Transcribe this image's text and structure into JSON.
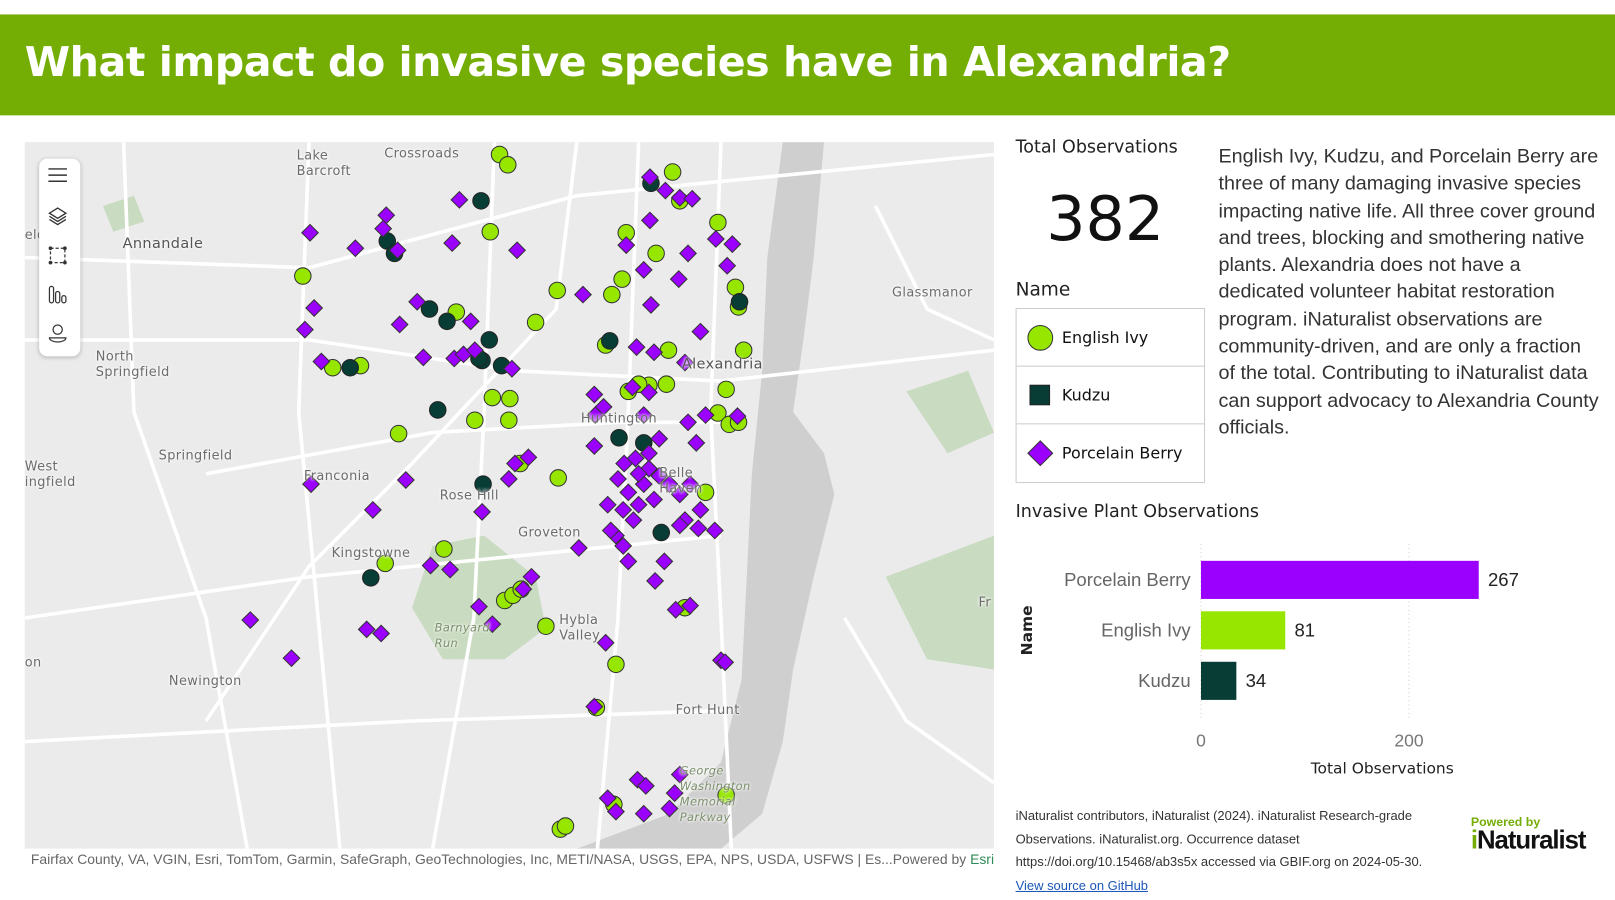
{
  "header": {
    "title": "What impact do invasive species have in Alexandria?",
    "color": "#74ad04"
  },
  "map": {
    "labels": [
      "Lake\nBarcroft",
      "Crossroads",
      "Annandale",
      "North\nSpringfield",
      "Glassmanor",
      "Alexandria",
      "Huntington",
      "Springfield",
      "Franconia",
      "Rose Hill",
      "West\ningfield",
      "Belle\nHaven",
      "Kingstowne",
      "Groveton",
      "Hybla\nValley",
      "Barnyard\nRun",
      "Newington",
      "Fort Hunt",
      "George\nWashington\nMemorial\nParkway",
      "Fr",
      "on",
      "eld"
    ],
    "toolbar": [
      {
        "name": "menu-icon"
      },
      {
        "name": "layers-icon"
      },
      {
        "name": "select-area-icon"
      },
      {
        "name": "chart-icon"
      },
      {
        "name": "person-icon"
      }
    ],
    "attribution": "Fairfax County, VA, VGIN, Esri, TomTom, Garmin, SafeGraph, GeoTechnologies, Inc, METI/NASA, USGS, EPA, NPS, USDA, USFWS | Es...",
    "powered_by": "Powered by",
    "esri": "Esri"
  },
  "kpi": {
    "title": "Total Observations",
    "value": "382"
  },
  "legend": {
    "title": "Name",
    "items": [
      {
        "label": "English Ivy",
        "symbol": "circle",
        "color": "#96e600"
      },
      {
        "label": "Kudzu",
        "symbol": "square",
        "color": "#083d36"
      },
      {
        "label": "Porcelain Berry",
        "symbol": "diamond",
        "color": "#9b00ff"
      }
    ]
  },
  "description": "English Ivy, Kudzu, and Porcelain Berry are three of many damaging invasive species impacting native life. All three cover ground and trees, blocking and smothering native plants. Alexandria does not have a dedicated volunteer habitat restoration program. iNaturalist observations are community-driven, and are only a fraction of the total. Contributing to iNaturalist data can support advocacy to Alexandria County officials.",
  "chart_data": {
    "type": "bar",
    "orientation": "horizontal",
    "title": "Invasive Plant Observations",
    "categories": [
      "Porcelain Berry",
      "English Ivy",
      "Kudzu"
    ],
    "values": [
      267,
      81,
      34
    ],
    "colors": [
      "#9b00ff",
      "#96e600",
      "#083d36"
    ],
    "xlabel": "Total Observations",
    "ylabel": "Name",
    "xticks": [
      "0",
      "200"
    ],
    "xlim": [
      0,
      300
    ],
    "grid": true,
    "data_labels": [
      "267",
      "81",
      "34"
    ]
  },
  "citation": {
    "lines": [
      "iNaturalist contributors, iNaturalist (2024). iNaturalist Research-grade",
      "Observations. iNaturalist.org. Occurrence dataset",
      "https://doi.org/10.15468/ab3s5x accessed via GBIF.org on 2024-05-30."
    ],
    "link": "View source on GitHub"
  },
  "logo": {
    "powered": "Powered by",
    "name": "iNaturalist"
  }
}
